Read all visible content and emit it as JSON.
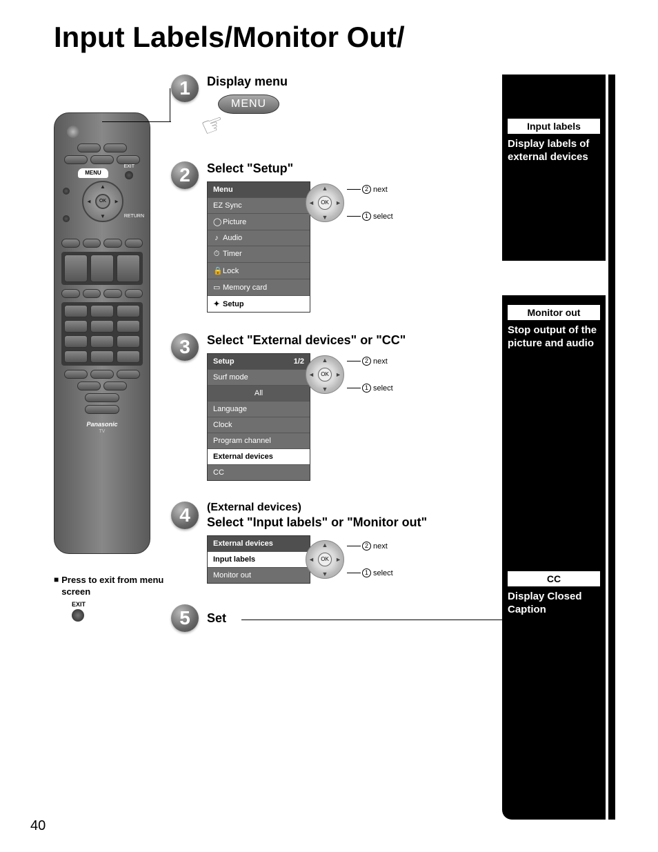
{
  "page": {
    "title": "Input Labels/Monitor Out/",
    "page_number": "40"
  },
  "remote": {
    "menu_label": "MENU",
    "exit_label": "EXIT",
    "ok_label": "OK",
    "return_label": "RETURN",
    "brand": "Panasonic",
    "brand_sub": "TV"
  },
  "exit_note": {
    "bullet": "■",
    "text": "Press to exit from menu screen",
    "btn_label": "EXIT"
  },
  "steps": {
    "s1": {
      "num": "1",
      "title": "Display menu",
      "menu_btn": "MENU"
    },
    "s2": {
      "num": "2",
      "title": "Select \"Setup\"",
      "panel_header": "Menu",
      "items": [
        "EZ Sync",
        "Picture",
        "Audio",
        "Timer",
        "Lock",
        "Memory card",
        "Setup"
      ],
      "icons": [
        "",
        "◯",
        "♪",
        "⏱",
        "🔒",
        "▭",
        "✦"
      ],
      "hl_index": 6
    },
    "s3": {
      "num": "3",
      "title": "Select \"External devices\" or \"CC\"",
      "panel_header": "Setup",
      "panel_page": "1/2",
      "items": [
        "Surf mode",
        "All",
        "Language",
        "Clock",
        "Program channel",
        "External devices",
        "CC"
      ],
      "sub_index": 1,
      "hl_index": 5
    },
    "s4": {
      "num": "4",
      "pre": "(External devices)",
      "title": "Select \"Input labels\" or \"Monitor out\"",
      "panel_header": "External devices",
      "items": [
        "Input labels",
        "Monitor out"
      ],
      "hl_index": 0
    },
    "s5": {
      "num": "5",
      "title": "Set"
    }
  },
  "wheel": {
    "ok": "OK",
    "next_num": "2",
    "next_label": "next",
    "select_num": "1",
    "select_label": "select"
  },
  "sidebar": {
    "box1": {
      "badge": "Input labels",
      "text": "Display labels of external devices"
    },
    "box2": {
      "badge": "Monitor out",
      "text": "Stop output of the picture and audio"
    },
    "box3": {
      "badge": "CC",
      "text": "Display Closed Caption"
    }
  },
  "colors": {
    "step_circle": "#777777",
    "panel_bg": "#6f6f6f",
    "panel_hd": "#4f4f4f",
    "black": "#000000"
  }
}
